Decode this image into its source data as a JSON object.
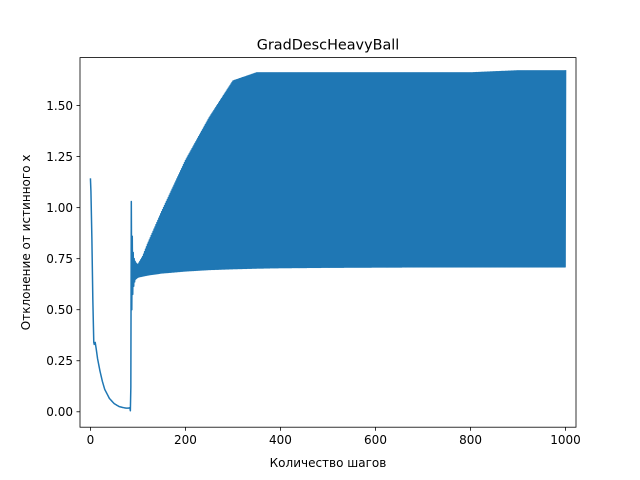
{
  "chart_data": {
    "type": "line",
    "title": "GradDescHeavyBall",
    "xlabel": "Количество шагов",
    "ylabel": "Отклонение от истинного x",
    "xlim": [
      -22,
      1022
    ],
    "ylim": [
      -0.0755,
      1.735
    ],
    "x_ticks": [
      0,
      200,
      400,
      600,
      800,
      1000
    ],
    "x_tick_labels": [
      "0",
      "200",
      "400",
      "600",
      "800",
      "1000"
    ],
    "y_ticks": [
      0.0,
      0.25,
      0.5,
      0.75,
      1.0,
      1.25,
      1.5
    ],
    "y_tick_labels": [
      "0.00",
      "0.25",
      "0.50",
      "0.75",
      "1.00",
      "1.25",
      "1.50"
    ],
    "grid": false,
    "series": [
      {
        "color": "#1f77b4",
        "description_points": {
          "x": [
            0,
            1,
            3,
            5,
            7,
            8,
            10,
            12,
            15,
            20,
            25,
            30,
            40,
            50,
            60,
            70,
            75,
            80,
            83,
            84,
            85,
            86,
            87,
            88,
            90,
            92,
            95,
            100,
            110,
            120,
            150,
            200,
            250,
            300,
            350,
            370,
            400,
            500,
            600,
            700,
            800,
            900,
            1000
          ],
          "y_upper": [
            1.14,
            1.08,
            0.85,
            0.55,
            0.34,
            0.33,
            0.34,
            0.31,
            0.26,
            0.2,
            0.15,
            0.11,
            0.065,
            0.04,
            0.026,
            0.02,
            0.018,
            0.018,
            0.02,
            0.005,
            0.12,
            1.03,
            0.92,
            0.86,
            0.78,
            0.75,
            0.73,
            0.72,
            0.76,
            0.82,
            0.98,
            1.23,
            1.44,
            1.62,
            1.66,
            1.66,
            1.66,
            1.66,
            1.66,
            1.66,
            1.66,
            1.67,
            1.67
          ],
          "y_lower": [
            1.14,
            1.08,
            0.85,
            0.55,
            0.34,
            0.33,
            0.34,
            0.31,
            0.26,
            0.2,
            0.15,
            0.11,
            0.065,
            0.04,
            0.026,
            0.02,
            0.018,
            0.018,
            0.02,
            0.005,
            0.12,
            0.4,
            0.5,
            0.55,
            0.6,
            0.63,
            0.65,
            0.66,
            0.665,
            0.67,
            0.68,
            0.69,
            0.697,
            0.701,
            0.704,
            0.705,
            0.706,
            0.708,
            0.709,
            0.71,
            0.71,
            0.71,
            0.71
          ]
        }
      }
    ]
  }
}
